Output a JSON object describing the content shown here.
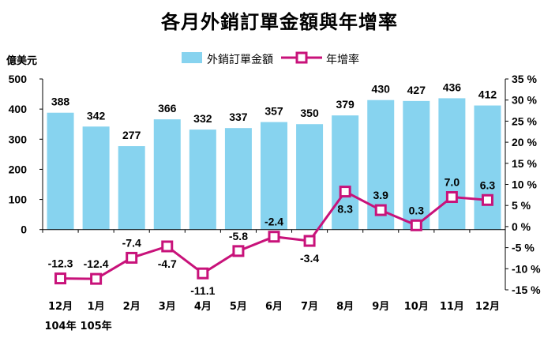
{
  "chart_data": {
    "type": "bar+line",
    "title": "各月外銷訂單金額與年增率",
    "left_unit": "億美元",
    "categories": [
      "12月",
      "1月",
      "2月",
      "3月",
      "4月",
      "5月",
      "6月",
      "7月",
      "8月",
      "9月",
      "10月",
      "11月",
      "12月"
    ],
    "year_labels": [
      {
        "index": 0,
        "text": "104年"
      },
      {
        "index": 1,
        "text": "105年"
      }
    ],
    "series": [
      {
        "name": "外銷訂單金額",
        "type": "bar",
        "axis": "left",
        "color": "#87d3ef",
        "values": [
          388,
          342,
          277,
          366,
          332,
          337,
          357,
          350,
          379,
          430,
          427,
          436,
          412
        ]
      },
      {
        "name": "年增率",
        "type": "line",
        "axis": "right",
        "color": "#c8127a",
        "values": [
          -12.3,
          -12.4,
          -7.4,
          -4.7,
          -11.1,
          -5.8,
          -2.4,
          -3.4,
          8.3,
          3.9,
          0.3,
          7.0,
          6.3
        ],
        "labels": [
          "-12.3",
          "-12.4",
          "-7.4",
          "-4.7",
          "-11.1",
          "-5.8",
          "-2.4",
          "-3.4",
          "8.3",
          "3.9",
          "0.3",
          "7.0",
          "6.3"
        ]
      }
    ],
    "left_axis": {
      "ylim": [
        -200,
        500
      ],
      "ticks": [
        "500",
        "400",
        "300",
        "200",
        "100",
        "0"
      ]
    },
    "right_axis": {
      "ylim": [
        -15,
        35
      ],
      "ticks": [
        "35 %",
        "30 %",
        "25 %",
        "20 %",
        "15 %",
        "10 %",
        "5 %",
        "0 %",
        "-5 %",
        "-10 %",
        "-15 %"
      ]
    },
    "legend_position": "top",
    "grid": false
  }
}
